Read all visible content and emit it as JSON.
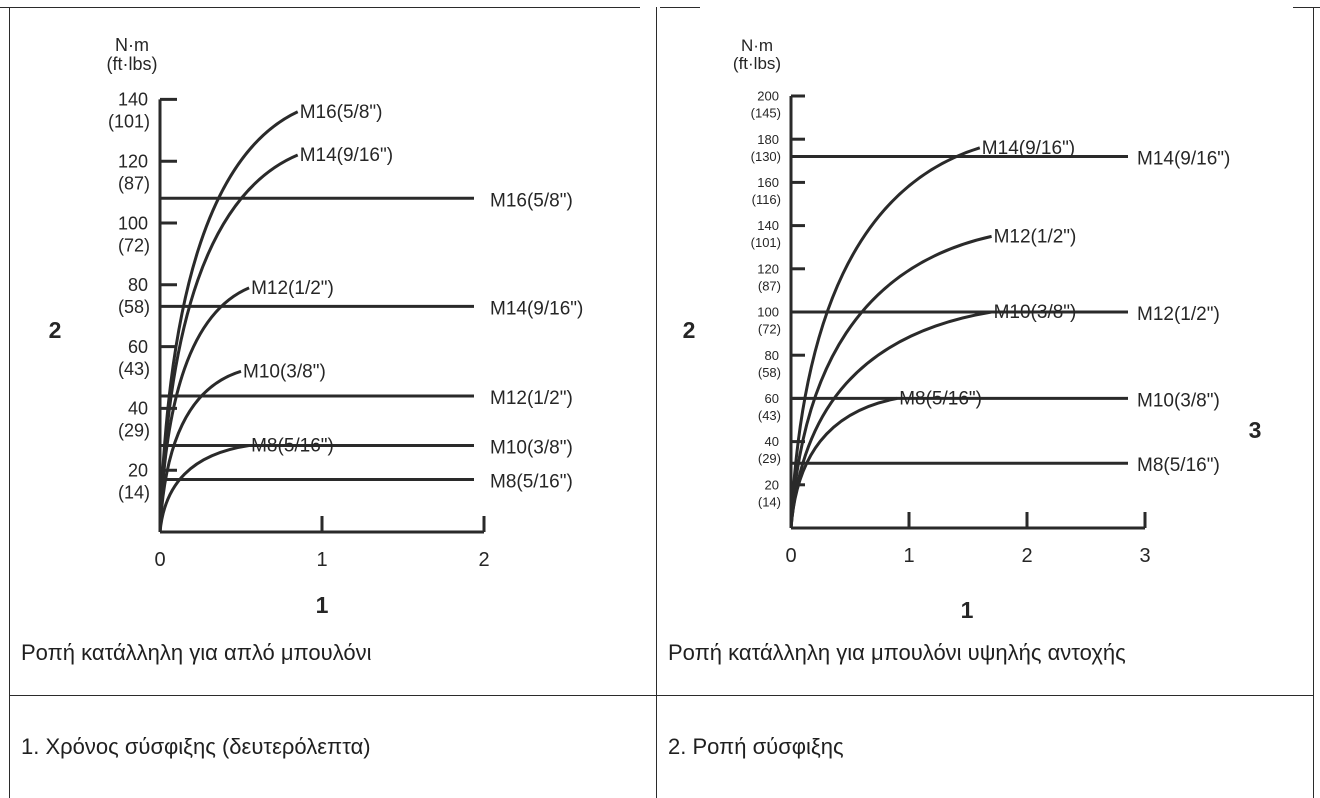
{
  "table": {
    "captions": [
      "Ροπή κατάλληλη για απλό μπουλόνι",
      "Ροπή κατάλληλη για μπουλόνι υψηλής αντοχής"
    ],
    "legend": [
      "1. Χρόνος σύσφιξης (δευτερόλεπτα)",
      "2. Ροπή σύσφιξης"
    ]
  },
  "chart_data": [
    {
      "type": "line",
      "y_unit": [
        "N·m",
        "(ft·lbs)"
      ],
      "x_axis_number": "1",
      "y_axis_number": "2",
      "xlim": [
        0,
        2
      ],
      "ylim": [
        0,
        140
      ],
      "x_ticks": [
        "0",
        "1",
        "2"
      ],
      "y_ticks": [
        {
          "v": 20,
          "nm": "20",
          "ft": "(14)"
        },
        {
          "v": 40,
          "nm": "40",
          "ft": "(29)"
        },
        {
          "v": 60,
          "nm": "60",
          "ft": "(43)"
        },
        {
          "v": 80,
          "nm": "80",
          "ft": "(58)"
        },
        {
          "v": 100,
          "nm": "100",
          "ft": "(72)"
        },
        {
          "v": 120,
          "nm": "120",
          "ft": "(87)"
        },
        {
          "v": 140,
          "nm": "140",
          "ft": "(101)"
        }
      ],
      "series": [
        {
          "name": "M16(5/8\")",
          "end": [
            0.85,
            136
          ]
        },
        {
          "name": "M14(9/16\")",
          "end": [
            0.85,
            122
          ]
        },
        {
          "name": "M12(1/2\")",
          "end": [
            0.55,
            79
          ]
        },
        {
          "name": "M10(3/8\")",
          "end": [
            0.5,
            52
          ]
        },
        {
          "name": "M8(5/16\")",
          "end": [
            0.55,
            28
          ]
        }
      ],
      "reference_lines": [
        {
          "name": "M16(5/8\")",
          "y": 108
        },
        {
          "name": "M14(9/16\")",
          "y": 73
        },
        {
          "name": "M12(1/2\")",
          "y": 44
        },
        {
          "name": "M10(3/8\")",
          "y": 28
        },
        {
          "name": "M8(5/16\")",
          "y": 17
        }
      ]
    },
    {
      "type": "line",
      "y_unit": [
        "N·m",
        "(ft·lbs)"
      ],
      "x_axis_number": "1",
      "y_axis_number": "2",
      "extra_label": "3",
      "xlim": [
        0,
        3
      ],
      "ylim": [
        0,
        200
      ],
      "x_ticks": [
        "0",
        "1",
        "2",
        "3"
      ],
      "y_ticks": [
        {
          "v": 20,
          "nm": "20",
          "ft": "(14)"
        },
        {
          "v": 40,
          "nm": "40",
          "ft": "(29)"
        },
        {
          "v": 60,
          "nm": "60",
          "ft": "(43)"
        },
        {
          "v": 80,
          "nm": "80",
          "ft": "(58)"
        },
        {
          "v": 100,
          "nm": "100",
          "ft": "(72)"
        },
        {
          "v": 120,
          "nm": "120",
          "ft": "(87)"
        },
        {
          "v": 140,
          "nm": "140",
          "ft": "(101)"
        },
        {
          "v": 160,
          "nm": "160",
          "ft": "(116)"
        },
        {
          "v": 180,
          "nm": "180",
          "ft": "(130)"
        },
        {
          "v": 200,
          "nm": "200",
          "ft": "(145)"
        }
      ],
      "series": [
        {
          "name": "M14(9/16\")",
          "end": [
            1.6,
            176
          ]
        },
        {
          "name": "M12(1/2\")",
          "end": [
            1.7,
            135
          ]
        },
        {
          "name": "M10(3/8\")",
          "end": [
            1.7,
            100
          ]
        },
        {
          "name": "M8(5/16\")",
          "end": [
            0.9,
            60
          ]
        }
      ],
      "reference_lines": [
        {
          "name": "M14(9/16\")",
          "y": 172
        },
        {
          "name": "M12(1/2\")",
          "y": 100
        },
        {
          "name": "M10(3/8\")",
          "y": 60
        },
        {
          "name": "M8(5/16\")",
          "y": 30
        }
      ]
    }
  ]
}
